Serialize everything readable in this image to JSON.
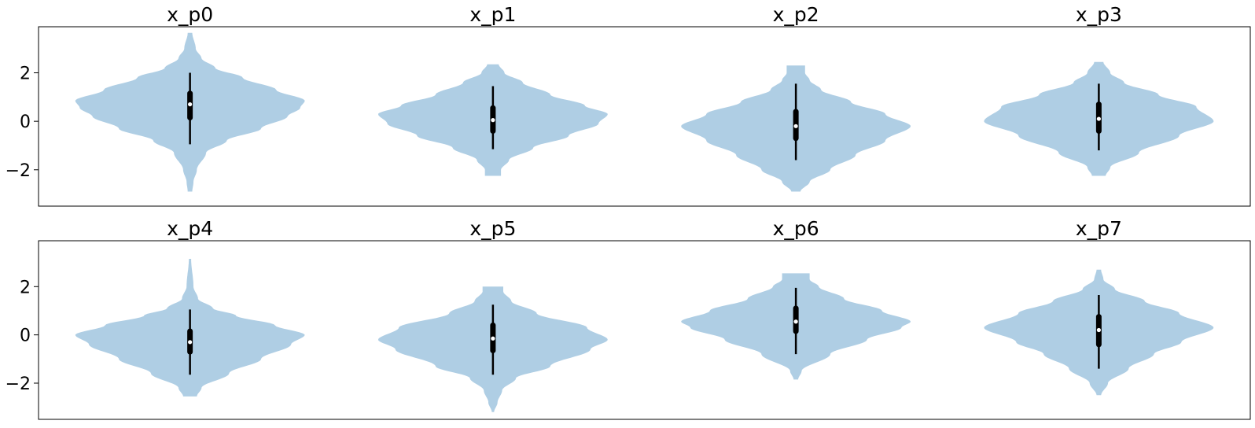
{
  "chart_data": [
    {
      "type": "violin",
      "ylim": [
        -3.5,
        3.9
      ],
      "yticks": [
        -2,
        0,
        2
      ],
      "ytick_labels": [
        "−2",
        "0",
        "2"
      ],
      "violin_color": "#afcee4",
      "panels": [
        {
          "title": "x_p0",
          "min": -2.9,
          "max": 3.65,
          "q1": 0.15,
          "median": 0.7,
          "q3": 1.15,
          "whisker_low": -0.95,
          "whisker_high": 2.0,
          "profile": [
            [
              -2.9,
              0.02
            ],
            [
              -2.5,
              0.03
            ],
            [
              -2.0,
              0.06
            ],
            [
              -1.3,
              0.14
            ],
            [
              -0.8,
              0.32
            ],
            [
              -0.3,
              0.62
            ],
            [
              0.2,
              0.85
            ],
            [
              0.55,
              0.96
            ],
            [
              0.85,
              1.0
            ],
            [
              1.3,
              0.75
            ],
            [
              1.8,
              0.46
            ],
            [
              2.2,
              0.22
            ],
            [
              2.6,
              0.1
            ],
            [
              3.0,
              0.05
            ],
            [
              3.65,
              0.02
            ]
          ]
        },
        {
          "title": "x_p1",
          "min": -2.25,
          "max": 2.35,
          "q1": -0.4,
          "median": 0.05,
          "q3": 0.55,
          "whisker_low": -1.15,
          "whisker_high": 1.45,
          "profile": [
            [
              -2.25,
              0.07
            ],
            [
              -2.0,
              0.07
            ],
            [
              -1.6,
              0.14
            ],
            [
              -1.1,
              0.35
            ],
            [
              -0.6,
              0.66
            ],
            [
              -0.1,
              0.92
            ],
            [
              0.3,
              1.0
            ],
            [
              0.65,
              0.8
            ],
            [
              1.1,
              0.5
            ],
            [
              1.6,
              0.26
            ],
            [
              2.0,
              0.1
            ],
            [
              2.35,
              0.05
            ]
          ]
        },
        {
          "title": "x_p2",
          "min": -2.9,
          "max": 2.3,
          "q1": -0.7,
          "median": -0.2,
          "q3": 0.4,
          "whisker_low": -1.6,
          "whisker_high": 1.55,
          "profile": [
            [
              -2.9,
              0.04
            ],
            [
              -2.5,
              0.12
            ],
            [
              -2.0,
              0.3
            ],
            [
              -1.4,
              0.52
            ],
            [
              -0.8,
              0.78
            ],
            [
              -0.2,
              1.0
            ],
            [
              0.3,
              0.78
            ],
            [
              0.8,
              0.48
            ],
            [
              1.3,
              0.22
            ],
            [
              1.7,
              0.12
            ],
            [
              2.0,
              0.08
            ],
            [
              2.3,
              0.08
            ]
          ]
        },
        {
          "title": "x_p3",
          "min": -2.25,
          "max": 2.45,
          "q1": -0.4,
          "median": 0.1,
          "q3": 0.7,
          "whisker_low": -1.2,
          "whisker_high": 1.55,
          "profile": [
            [
              -2.25,
              0.06
            ],
            [
              -1.9,
              0.1
            ],
            [
              -1.3,
              0.35
            ],
            [
              -0.6,
              0.7
            ],
            [
              0.0,
              1.0
            ],
            [
              0.6,
              0.85
            ],
            [
              1.1,
              0.52
            ],
            [
              1.6,
              0.22
            ],
            [
              2.0,
              0.1
            ],
            [
              2.45,
              0.04
            ]
          ]
        },
        {
          "title": "x_p4",
          "min": -2.55,
          "max": 3.15,
          "q1": -0.7,
          "median": -0.3,
          "q3": 0.15,
          "whisker_low": -1.65,
          "whisker_high": 1.05,
          "profile": [
            [
              -2.55,
              0.06
            ],
            [
              -2.2,
              0.1
            ],
            [
              -1.6,
              0.34
            ],
            [
              -1.0,
              0.62
            ],
            [
              -0.4,
              0.88
            ],
            [
              0.0,
              1.0
            ],
            [
              0.4,
              0.74
            ],
            [
              0.8,
              0.4
            ],
            [
              1.1,
              0.2
            ],
            [
              1.5,
              0.07
            ],
            [
              2.0,
              0.03
            ],
            [
              3.15,
              0.01
            ]
          ]
        },
        {
          "title": "x_p5",
          "min": -3.2,
          "max": 2.0,
          "q1": -0.65,
          "median": -0.15,
          "q3": 0.4,
          "whisker_low": -1.65,
          "whisker_high": 1.25,
          "profile": [
            [
              -3.2,
              0.01
            ],
            [
              -2.8,
              0.04
            ],
            [
              -2.3,
              0.08
            ],
            [
              -1.8,
              0.2
            ],
            [
              -1.3,
              0.5
            ],
            [
              -0.6,
              0.85
            ],
            [
              -0.2,
              1.0
            ],
            [
              0.3,
              0.82
            ],
            [
              0.9,
              0.38
            ],
            [
              1.4,
              0.16
            ],
            [
              1.8,
              0.09
            ],
            [
              2.0,
              0.09
            ]
          ]
        },
        {
          "title": "x_p6",
          "min": -1.85,
          "max": 2.55,
          "q1": 0.15,
          "median": 0.55,
          "q3": 1.1,
          "whisker_low": -0.8,
          "whisker_high": 1.95,
          "profile": [
            [
              -1.85,
              0.02
            ],
            [
              -1.5,
              0.05
            ],
            [
              -0.8,
              0.3
            ],
            [
              -0.2,
              0.62
            ],
            [
              0.3,
              0.92
            ],
            [
              0.55,
              1.0
            ],
            [
              1.0,
              0.75
            ],
            [
              1.5,
              0.42
            ],
            [
              2.0,
              0.2
            ],
            [
              2.3,
              0.12
            ],
            [
              2.55,
              0.12
            ]
          ]
        },
        {
          "title": "x_p7",
          "min": -2.5,
          "max": 2.7,
          "q1": -0.4,
          "median": 0.2,
          "q3": 0.75,
          "whisker_low": -1.4,
          "whisker_high": 1.65,
          "profile": [
            [
              -2.5,
              0.02
            ],
            [
              -2.0,
              0.08
            ],
            [
              -1.4,
              0.26
            ],
            [
              -0.8,
              0.48
            ],
            [
              -0.3,
              0.72
            ],
            [
              0.3,
              1.0
            ],
            [
              0.9,
              0.7
            ],
            [
              1.4,
              0.4
            ],
            [
              1.9,
              0.14
            ],
            [
              2.3,
              0.04
            ],
            [
              2.7,
              0.02
            ]
          ]
        }
      ]
    }
  ]
}
